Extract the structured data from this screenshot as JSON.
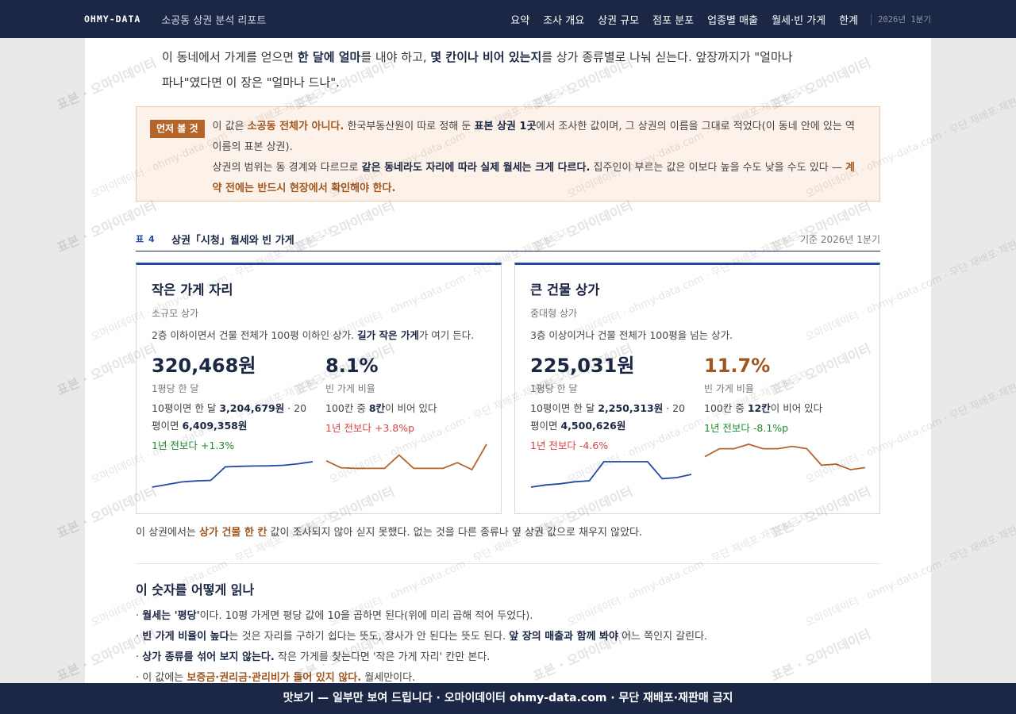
{
  "nav": {
    "brand": "OHMY-DATA",
    "report": "소공동 상권 분석 리포트",
    "items": [
      "요약",
      "조사 개요",
      "상권 규모",
      "점포 분포",
      "업종별 매출",
      "월세·빈 가게",
      "한계"
    ],
    "period": "2026년 1분기"
  },
  "intro": [
    {
      "text": "이 동네에서 가게를 얻으면 ",
      "style": "plain"
    },
    {
      "text": "한 달에 얼마",
      "style": "bold"
    },
    {
      "text": "를 내야 하고, ",
      "style": "plain"
    },
    {
      "text": "몇 칸이나 비어 있는지",
      "style": "bold"
    },
    {
      "text": "를 상가 종류별로 나눠 싣는다. 앞장까지가 \"얼마나 파나\"였다면 이 장은 \"얼마나 드나\".",
      "style": "plain"
    }
  ],
  "notice": {
    "tag": "먼저 볼 것",
    "paragraphs": [
      [
        {
          "text": "이 값은 ",
          "style": "plain"
        },
        {
          "text": "소공동 전체가 아니다.",
          "style": "accent"
        },
        {
          "text": " 한국부동산원이 따로 정해 둔 ",
          "style": "plain"
        },
        {
          "text": "표본 상권 1곳",
          "style": "bold"
        },
        {
          "text": "에서 조사한 값이며, 그 상권의 이름을 그대로 적었다(이 동네 안에 있는 역 이름의 표본 상권).",
          "style": "plain"
        }
      ],
      [
        {
          "text": "상권의 범위는 동 경계와 다르므로 ",
          "style": "plain"
        },
        {
          "text": "같은 동네라도 자리에 따라 실제 월세는 크게 다르다.",
          "style": "bold"
        },
        {
          "text": " 집주인이 부르는 값은 이보다 높을 수도 낮을 수도 있다 — ",
          "style": "plain"
        },
        {
          "text": "계약 전에는 반드시 현장에서 확인해야 한다.",
          "style": "accent"
        }
      ]
    ]
  },
  "table": {
    "number": "표 4",
    "title": "상권「시청」월세와 빈 가게",
    "basis": "기준 2026년 1분기",
    "cards": [
      {
        "title": "작은 가게 자리",
        "subtitle": "소규모 상가",
        "description": [
          {
            "text": "2층 이하이면서 건물 전체가 100평 이하인 상가. ",
            "style": "plain"
          },
          {
            "text": "길가 작은 가게",
            "style": "bold"
          },
          {
            "text": "가 여기 든다.",
            "style": "plain"
          }
        ],
        "metrics": [
          {
            "value_label": "320,468원",
            "value_color": "#1b2745",
            "caption": "1평당 한 달",
            "detail": [
              {
                "text": "10평이면 한 달 ",
                "style": "plain"
              },
              {
                "text": "3,204,679원",
                "style": "bold"
              },
              {
                "text": " · 20평이면 ",
                "style": "plain"
              },
              {
                "text": "6,409,358원",
                "style": "bold"
              }
            ],
            "change": "1년 전보다 +1.3%",
            "change_color": "#1f8a2e",
            "trend": {
              "color": "#2448a8",
              "values": [
                296000,
                298500,
                301000,
                302000,
                302500,
                315500,
                316000,
                316360,
                316500,
                317000,
                318500,
                320468
              ]
            }
          },
          {
            "value_label": "8.1%",
            "value_color": "#1b2745",
            "caption": "빈 가게 비율",
            "detail": [
              {
                "text": "100칸 중 ",
                "style": "plain"
              },
              {
                "text": "8칸",
                "style": "bold"
              },
              {
                "text": "이 비어 있다",
                "style": "plain"
              }
            ],
            "change": "1년 전보다 +3.8%p",
            "change_color": "#d64545",
            "trend": {
              "color": "#b5652a",
              "values": [
                5.5,
                4.4,
                4.3,
                4.3,
                4.3,
                6.4,
                4.3,
                4.3,
                4.3,
                5.2,
                4.1,
                8.1
              ]
            }
          }
        ]
      },
      {
        "title": "큰 건물 상가",
        "subtitle": "중대형 상가",
        "description": [
          {
            "text": "3층 이상이거나 건물 전체가 100평을 넘는 상가.",
            "style": "plain"
          }
        ],
        "metrics": [
          {
            "value_label": "225,031원",
            "value_color": "#1b2745",
            "caption": "1평당 한 달",
            "detail": [
              {
                "text": "10평이면 한 달 ",
                "style": "plain"
              },
              {
                "text": "2,250,313원",
                "style": "bold"
              },
              {
                "text": " · 20평이면 ",
                "style": "plain"
              },
              {
                "text": "4,500,626원",
                "style": "bold"
              }
            ],
            "change": "1년 전보다 -4.6%",
            "change_color": "#d64545",
            "trend": {
              "color": "#2448a8",
              "values": [
                214183,
                216000,
                217000,
                218700,
                219600,
                235880,
                235880,
                235880,
                235880,
                221400,
                222300,
                225031
              ]
            }
          },
          {
            "value_label": "11.7%",
            "value_color": "#a0561f",
            "caption": "빈 가게 비율",
            "detail": [
              {
                "text": "100칸 중 ",
                "style": "plain"
              },
              {
                "text": "12칸",
                "style": "bold"
              },
              {
                "text": "이 비어 있다",
                "style": "plain"
              }
            ],
            "change": "1년 전보다 -8.1%p",
            "change_color": "#1f8a2e",
            "trend": {
              "color": "#b5652a",
              "values": [
                16.4,
                19.8,
                19.8,
                21.7,
                19.8,
                19.8,
                20.8,
                19.8,
                12.7,
                13.2,
                10.8,
                11.7
              ]
            }
          }
        ]
      }
    ]
  },
  "footnote": [
    {
      "text": "이 상권에서는 ",
      "style": "plain"
    },
    {
      "text": "상가 건물 한 칸",
      "style": "accent"
    },
    {
      "text": " 값이 조사되지 않아 싣지 못했다. 없는 것을 다른 종류나 옆 상권 값으로 채우지 않았다.",
      "style": "plain"
    }
  ],
  "guide": {
    "title": "이 숫자를 어떻게 읽나",
    "items": [
      [
        {
          "text": "월세는 '평당'",
          "style": "bold"
        },
        {
          "text": "이다. 10평 가게면 평당 값에 10을 곱하면 된다(위에 미리 곱해 적어 두었다).",
          "style": "plain"
        }
      ],
      [
        {
          "text": "빈 가게 비율이 높다",
          "style": "bold"
        },
        {
          "text": "는 것은 자리를 구하기 쉽다는 뜻도, 장사가 안 된다는 뜻도 된다. ",
          "style": "plain"
        },
        {
          "text": "앞 장의 매출과 함께 봐야",
          "style": "bold"
        },
        {
          "text": " 어느 쪽인지 갈린다.",
          "style": "plain"
        }
      ],
      [
        {
          "text": "상가 종류를 섞어 보지 않는다.",
          "style": "bold"
        },
        {
          "text": " 작은 가게를 찾는다면 '작은 가게 자리' 칸만 본다.",
          "style": "plain"
        }
      ],
      [
        {
          "text": "이 값에는 ",
          "style": "plain"
        },
        {
          "text": "보증금·권리금·관리비가 들어 있지 않다.",
          "style": "accent"
        },
        {
          "text": " 월세만이다.",
          "style": "plain"
        }
      ]
    ]
  },
  "footer": "맛보기 — 일부만 보여 드립니다 · 오마이데이터 ohmy-data.com · 무단 재배포·재판매 금지",
  "watermarks": [
    "표본 · 오마이데이터",
    "오마이데이터 · ohmy-data.com · 무단 재배포·재판매 금지"
  ]
}
